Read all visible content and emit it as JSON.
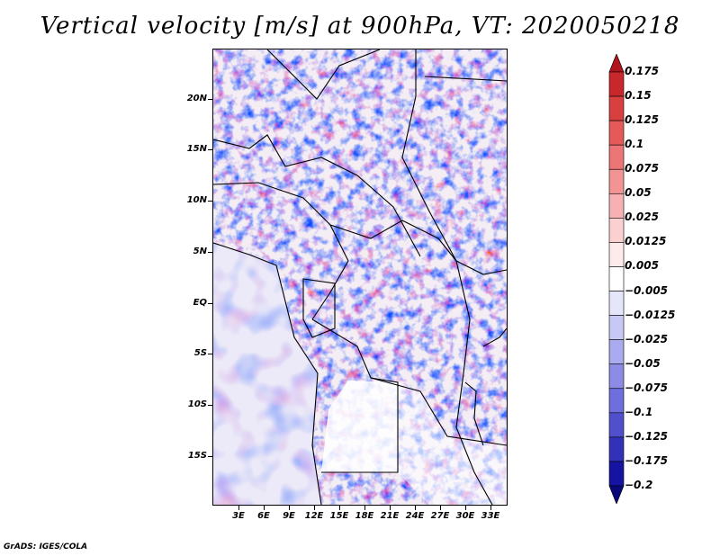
{
  "title": "Vertical velocity [m/s] at 900hPa, VT: 2020050218",
  "credit": "GrADS: IGES/COLA",
  "map": {
    "variable": "Vertical velocity",
    "units": "m/s",
    "level": "900hPa",
    "valid_time": "2020050218",
    "lat_labels": [
      "20N",
      "15N",
      "10N",
      "5N",
      "EQ",
      "5S",
      "10S",
      "15S"
    ],
    "lon_labels": [
      "3E",
      "6E",
      "9E",
      "12E",
      "15E",
      "18E",
      "21E",
      "24E",
      "27E",
      "30E",
      "33E"
    ]
  },
  "colorbar": {
    "labels": [
      "0.175",
      "0.15",
      "0.125",
      "0.1",
      "0.075",
      "0.05",
      "0.025",
      "0.0125",
      "0.005",
      "−0.005",
      "−0.0125",
      "−0.025",
      "−0.05",
      "−0.075",
      "−0.1",
      "−0.125",
      "−0.175",
      "−0.2"
    ],
    "colors": [
      "#b0141e",
      "#c8282c",
      "#d84040",
      "#e45a58",
      "#ec7676",
      "#f29494",
      "#f6b2b2",
      "#fad0d0",
      "#fdeaea",
      "#ffffff",
      "#e6e6fa",
      "#c8c8f4",
      "#aaaaee",
      "#8c8ce6",
      "#6e6edc",
      "#5050cc",
      "#3232b8",
      "#1414a0",
      "#08087a"
    ]
  }
}
